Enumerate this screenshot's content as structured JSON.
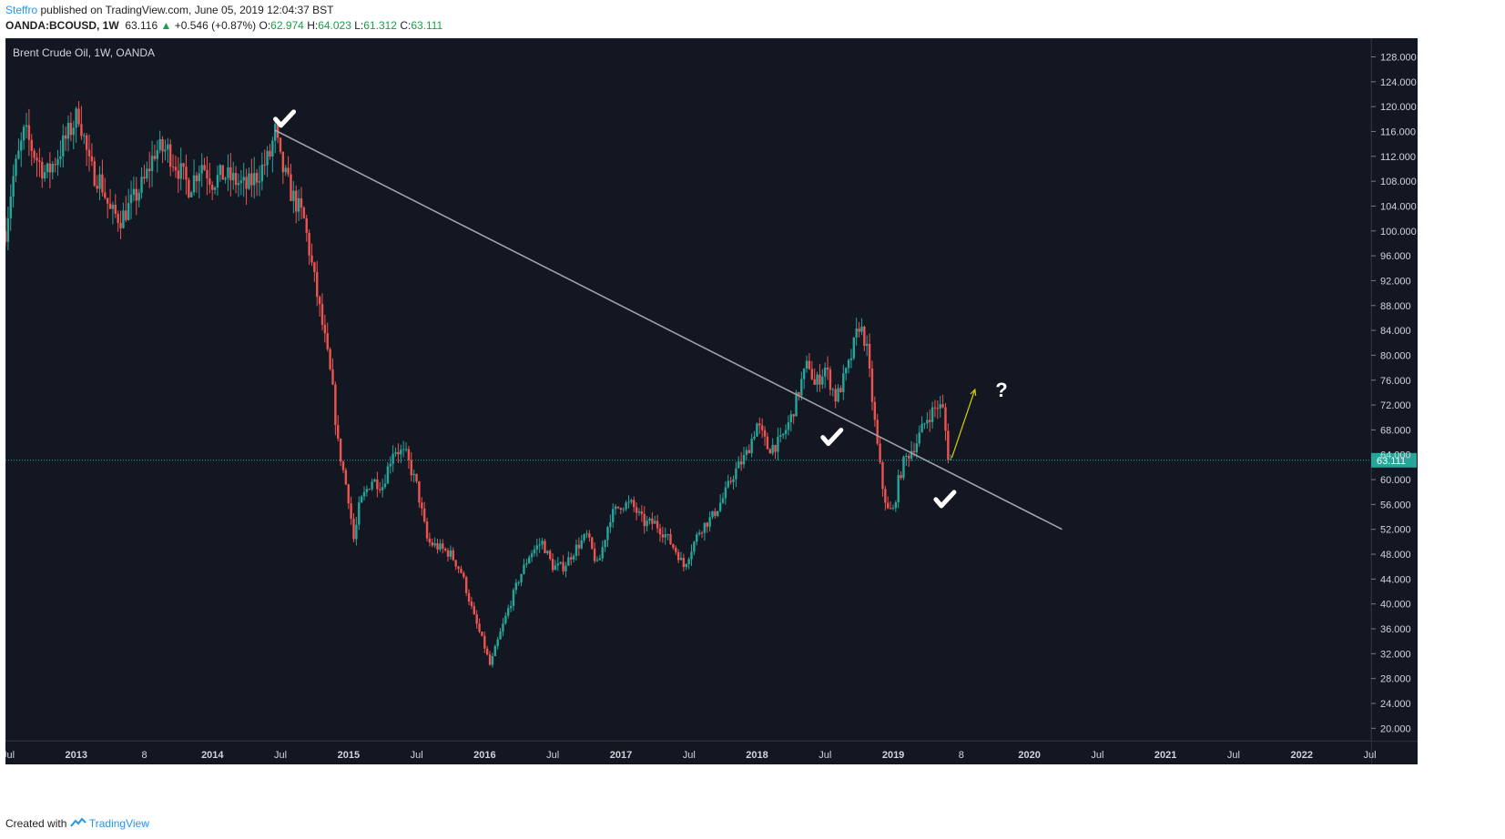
{
  "header": {
    "author": "Steffro",
    "published_text": "published on TradingView.com, June 05, 2019 12:04:37 BST",
    "symbol": "OANDA:BCOUSD, 1W",
    "last": "63.116",
    "change_arrow": "▲",
    "change": "+0.546 (+0.87%)",
    "o_label": "O:",
    "o_value": "62.974",
    "h_label": "H:",
    "h_value": "64.023",
    "l_label": "L:",
    "l_value": "61.312",
    "c_label": "C:",
    "c_value": "63.111"
  },
  "footer": {
    "created_with": "Created with",
    "brand": "TradingView"
  },
  "colors": {
    "background": "#131722",
    "up": "#26a69a",
    "down": "#ef5350",
    "trendline": "#9ea3ad",
    "price_line": "#26a69a",
    "arrow": "#d4d000",
    "marks": "#ffffff"
  },
  "chart_data": {
    "type": "candlestick",
    "title": "Brent Crude Oil, 1W, OANDA",
    "ylim": [
      18,
      131
    ],
    "y_ticks": [
      "20.000",
      "24.000",
      "28.000",
      "32.000",
      "36.000",
      "40.000",
      "44.000",
      "48.000",
      "52.000",
      "56.000",
      "60.000",
      "64.000",
      "68.000",
      "72.000",
      "76.000",
      "80.000",
      "84.000",
      "88.000",
      "92.000",
      "96.000",
      "100.000",
      "104.000",
      "108.000",
      "112.000",
      "116.000",
      "120.000",
      "124.000",
      "128.000"
    ],
    "x_ticks": [
      {
        "label": "Jul",
        "t": 2012.5
      },
      {
        "label": "2013",
        "t": 2013.0
      },
      {
        "label": "8",
        "t": 2013.5
      },
      {
        "label": "2014",
        "t": 2014.0
      },
      {
        "label": "Jul",
        "t": 2014.5
      },
      {
        "label": "2015",
        "t": 2015.0
      },
      {
        "label": "Jul",
        "t": 2015.5
      },
      {
        "label": "2016",
        "t": 2016.0
      },
      {
        "label": "Jul",
        "t": 2016.5
      },
      {
        "label": "2017",
        "t": 2017.0
      },
      {
        "label": "Jul",
        "t": 2017.5
      },
      {
        "label": "2018",
        "t": 2018.0
      },
      {
        "label": "Jul",
        "t": 2018.5
      },
      {
        "label": "2019",
        "t": 2019.0
      },
      {
        "label": "8",
        "t": 2019.5
      },
      {
        "label": "2020",
        "t": 2020.0
      },
      {
        "label": "Jul",
        "t": 2020.5
      },
      {
        "label": "2021",
        "t": 2021.0
      },
      {
        "label": "Jul",
        "t": 2021.5
      },
      {
        "label": "2022",
        "t": 2022.0
      },
      {
        "label": "Jul",
        "t": 2022.5
      }
    ],
    "x_range": [
      2012.48,
      2022.51
    ],
    "last_price_label": "63.111",
    "last_price": 63.111,
    "price_path": [
      [
        2012.48,
        100
      ],
      [
        2012.53,
        108
      ],
      [
        2012.62,
        116
      ],
      [
        2012.7,
        112
      ],
      [
        2012.78,
        109
      ],
      [
        2012.86,
        112
      ],
      [
        2012.95,
        116
      ],
      [
        2013.02,
        119
      ],
      [
        2013.1,
        110
      ],
      [
        2013.18,
        108
      ],
      [
        2013.25,
        103
      ],
      [
        2013.33,
        102
      ],
      [
        2013.42,
        105
      ],
      [
        2013.5,
        108
      ],
      [
        2013.58,
        113
      ],
      [
        2013.67,
        113
      ],
      [
        2013.75,
        110
      ],
      [
        2013.83,
        107
      ],
      [
        2013.92,
        111
      ],
      [
        2014.0,
        108
      ],
      [
        2014.08,
        109
      ],
      [
        2014.17,
        108
      ],
      [
        2014.25,
        107
      ],
      [
        2014.33,
        109
      ],
      [
        2014.42,
        112
      ],
      [
        2014.46,
        116
      ],
      [
        2014.5,
        111
      ],
      [
        2014.58,
        106
      ],
      [
        2014.67,
        102
      ],
      [
        2014.75,
        92
      ],
      [
        2014.83,
        82
      ],
      [
        2014.88,
        75
      ],
      [
        2014.92,
        66
      ],
      [
        2015.0,
        57
      ],
      [
        2015.04,
        50
      ],
      [
        2015.08,
        56
      ],
      [
        2015.17,
        60
      ],
      [
        2015.25,
        59
      ],
      [
        2015.33,
        65
      ],
      [
        2015.42,
        64
      ],
      [
        2015.5,
        59
      ],
      [
        2015.58,
        50
      ],
      [
        2015.67,
        49
      ],
      [
        2015.75,
        48
      ],
      [
        2015.83,
        45
      ],
      [
        2015.92,
        38
      ],
      [
        2016.0,
        33
      ],
      [
        2016.04,
        30
      ],
      [
        2016.08,
        33
      ],
      [
        2016.17,
        39
      ],
      [
        2016.25,
        44
      ],
      [
        2016.33,
        48
      ],
      [
        2016.42,
        50
      ],
      [
        2016.5,
        46
      ],
      [
        2016.58,
        46
      ],
      [
        2016.67,
        49
      ],
      [
        2016.75,
        51
      ],
      [
        2016.83,
        46
      ],
      [
        2016.92,
        54
      ],
      [
        2017.0,
        56
      ],
      [
        2017.08,
        56
      ],
      [
        2017.17,
        53
      ],
      [
        2017.25,
        53
      ],
      [
        2017.33,
        51
      ],
      [
        2017.42,
        48
      ],
      [
        2017.46,
        46
      ],
      [
        2017.5,
        48
      ],
      [
        2017.58,
        52
      ],
      [
        2017.67,
        54
      ],
      [
        2017.75,
        57
      ],
      [
        2017.83,
        61
      ],
      [
        2017.92,
        64
      ],
      [
        2018.0,
        69
      ],
      [
        2018.08,
        65
      ],
      [
        2018.17,
        66
      ],
      [
        2018.25,
        70
      ],
      [
        2018.33,
        76
      ],
      [
        2018.38,
        79
      ],
      [
        2018.42,
        75
      ],
      [
        2018.5,
        78
      ],
      [
        2018.58,
        73
      ],
      [
        2018.67,
        78
      ],
      [
        2018.75,
        85
      ],
      [
        2018.8,
        82
      ],
      [
        2018.83,
        76
      ],
      [
        2018.88,
        66
      ],
      [
        2018.92,
        59
      ],
      [
        2018.96,
        55
      ],
      [
        2019.0,
        55
      ],
      [
        2019.04,
        60
      ],
      [
        2019.08,
        63
      ],
      [
        2019.17,
        66
      ],
      [
        2019.25,
        70
      ],
      [
        2019.33,
        72
      ],
      [
        2019.37,
        71
      ],
      [
        2019.4,
        64
      ],
      [
        2019.43,
        63
      ]
    ],
    "trendline": {
      "from": [
        2014.46,
        116.2
      ],
      "to": [
        2020.24,
        52.0
      ]
    },
    "annotations": [
      {
        "type": "check",
        "t": 2014.53,
        "p": 118.0
      },
      {
        "type": "check",
        "t": 2018.55,
        "p": 66.8
      },
      {
        "type": "check",
        "t": 2019.38,
        "p": 56.8
      },
      {
        "type": "arrow",
        "from": [
          2019.43,
          63.5
        ],
        "to": [
          2019.6,
          74.5
        ]
      },
      {
        "type": "text",
        "text": "?",
        "t": 2019.75,
        "p": 74.5
      }
    ]
  }
}
